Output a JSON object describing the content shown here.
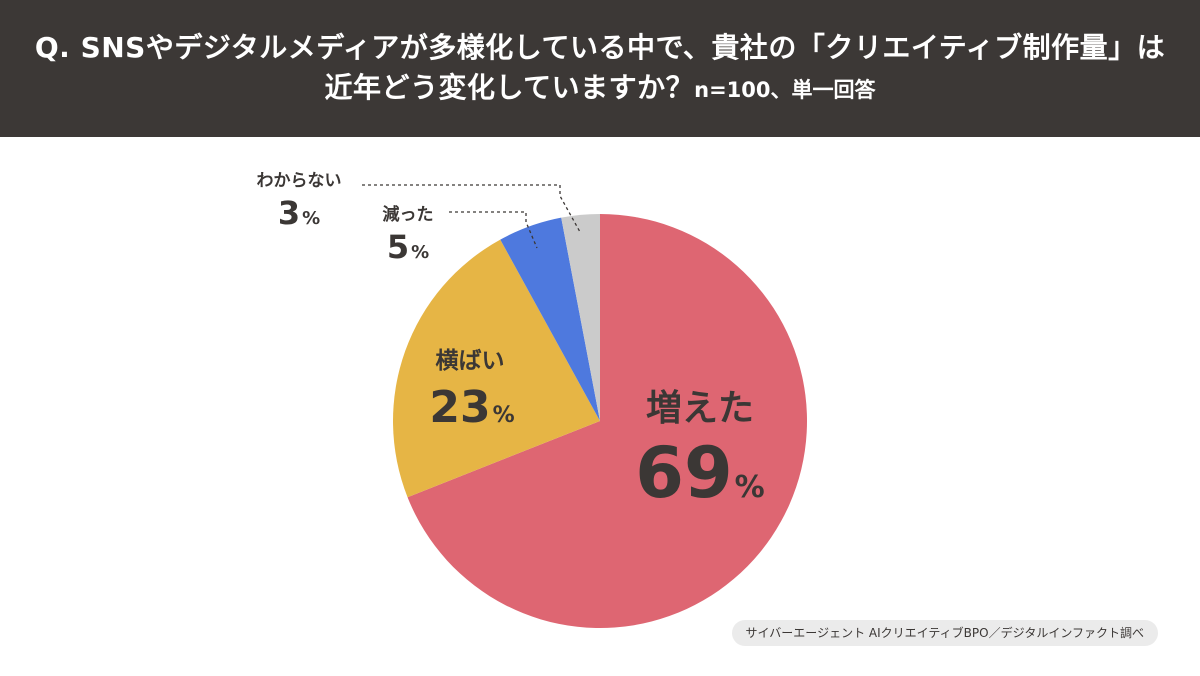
{
  "title": {
    "line1": "Q. SNSやデジタルメディアが多様化している中で、貴社の「クリエイティブ制作量」は",
    "line2": "近年どう変化していますか？",
    "note": "n=100、単一回答"
  },
  "chart_data": {
    "type": "pie",
    "unit": "%",
    "slices": [
      {
        "label": "増えた",
        "value": 69,
        "color": "#de6672"
      },
      {
        "label": "横ばい",
        "value": 23,
        "color": "#e6b545"
      },
      {
        "label": "減った",
        "value": 5,
        "color": "#4e79de"
      },
      {
        "label": "わからない",
        "value": 3,
        "color": "#cbcbcb"
      }
    ]
  },
  "source": "サイバーエージェント AIクリエイティブBPO／デジタルインファクト調べ"
}
